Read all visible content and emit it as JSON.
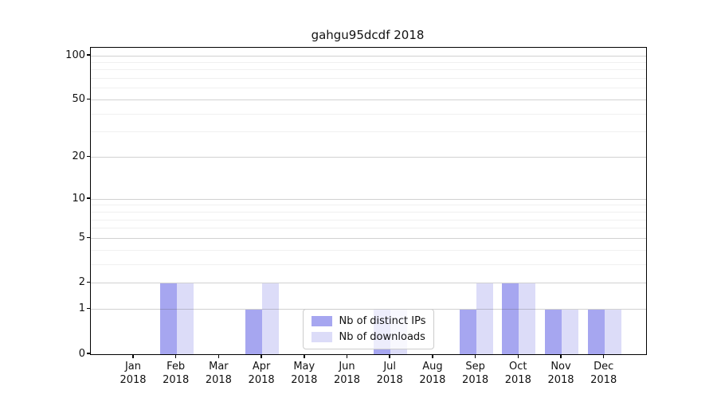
{
  "chart_data": {
    "type": "bar",
    "title": "gahgu95dcdf 2018",
    "categories": [
      "Jan 2018",
      "Feb 2018",
      "Mar 2018",
      "Apr 2018",
      "May 2018",
      "Jun 2018",
      "Jul 2018",
      "Aug 2018",
      "Sep 2018",
      "Oct 2018",
      "Nov 2018",
      "Dec 2018"
    ],
    "x_tick_months": [
      "Jan",
      "Feb",
      "Mar",
      "Apr",
      "May",
      "Jun",
      "Jul",
      "Aug",
      "Sep",
      "Oct",
      "Nov",
      "Dec"
    ],
    "x_tick_year": "2018",
    "series": [
      {
        "name": "Nb of distinct IPs",
        "color": "#a6a6f0",
        "values": [
          0,
          2,
          0,
          1,
          0,
          0,
          1,
          0,
          1,
          2,
          1,
          1
        ]
      },
      {
        "name": "Nb of downloads",
        "color": "#dcdcf8",
        "values": [
          0,
          2,
          0,
          2,
          0,
          0,
          1,
          0,
          2,
          2,
          1,
          1
        ]
      }
    ],
    "xlabel": "",
    "ylabel": "",
    "y_major_ticks": [
      0,
      1,
      2,
      5,
      10,
      20,
      50,
      100
    ],
    "y_minor_ticks": [
      3,
      4,
      6,
      7,
      8,
      9,
      30,
      40,
      60,
      70,
      80,
      90
    ],
    "yscale": "log1p",
    "ylim": [
      0,
      113
    ],
    "grid": "horizontal, major and minor, drawn above bars",
    "legend_position": "lower center inside plot, semi-transparent white box"
  },
  "colors": {
    "background": "#ffffff",
    "spine": "#000000",
    "major_grid": "#d3d3d3",
    "minor_grid": "#f0f0f0",
    "text": "#111111"
  }
}
